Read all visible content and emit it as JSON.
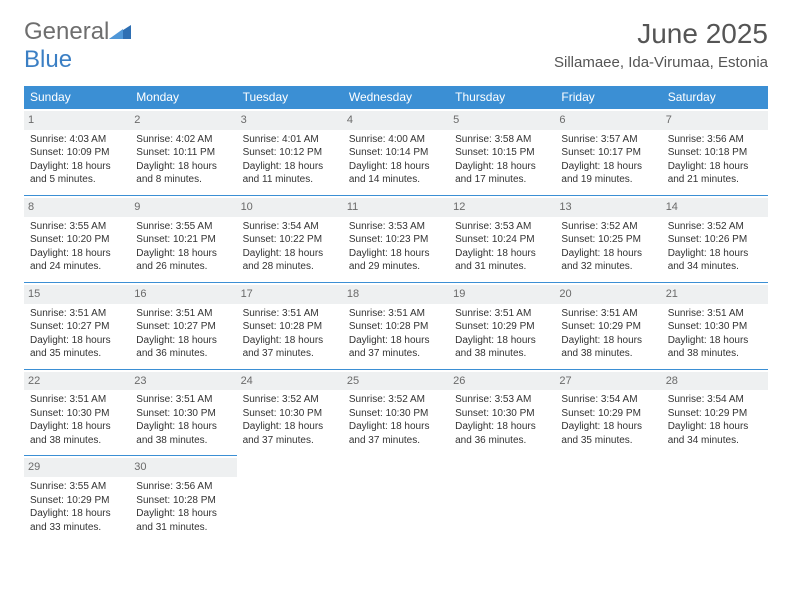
{
  "brand": {
    "word1": "General",
    "word2": "Blue"
  },
  "header": {
    "month_title": "June 2025",
    "location": "Sillamaee, Ida-Virumaa, Estonia"
  },
  "colors": {
    "header_bg": "#3b8fd4",
    "header_text": "#ffffff",
    "daynum_bg": "#eef0f1",
    "daynum_text": "#6a6a6a",
    "rule": "#3b8fd4",
    "body_text": "#333333",
    "logo_gray": "#6e6e6e",
    "logo_blue": "#3b7fc4"
  },
  "typography": {
    "title_fontsize": 28,
    "location_fontsize": 15,
    "header_cell_fontsize": 12,
    "daynum_fontsize": 11,
    "cell_fontsize": 10
  },
  "weekdays": [
    "Sunday",
    "Monday",
    "Tuesday",
    "Wednesday",
    "Thursday",
    "Friday",
    "Saturday"
  ],
  "days": [
    {
      "n": 1,
      "sunrise": "4:03 AM",
      "sunset": "10:09 PM",
      "daylight": "18 hours and 5 minutes."
    },
    {
      "n": 2,
      "sunrise": "4:02 AM",
      "sunset": "10:11 PM",
      "daylight": "18 hours and 8 minutes."
    },
    {
      "n": 3,
      "sunrise": "4:01 AM",
      "sunset": "10:12 PM",
      "daylight": "18 hours and 11 minutes."
    },
    {
      "n": 4,
      "sunrise": "4:00 AM",
      "sunset": "10:14 PM",
      "daylight": "18 hours and 14 minutes."
    },
    {
      "n": 5,
      "sunrise": "3:58 AM",
      "sunset": "10:15 PM",
      "daylight": "18 hours and 17 minutes."
    },
    {
      "n": 6,
      "sunrise": "3:57 AM",
      "sunset": "10:17 PM",
      "daylight": "18 hours and 19 minutes."
    },
    {
      "n": 7,
      "sunrise": "3:56 AM",
      "sunset": "10:18 PM",
      "daylight": "18 hours and 21 minutes."
    },
    {
      "n": 8,
      "sunrise": "3:55 AM",
      "sunset": "10:20 PM",
      "daylight": "18 hours and 24 minutes."
    },
    {
      "n": 9,
      "sunrise": "3:55 AM",
      "sunset": "10:21 PM",
      "daylight": "18 hours and 26 minutes."
    },
    {
      "n": 10,
      "sunrise": "3:54 AM",
      "sunset": "10:22 PM",
      "daylight": "18 hours and 28 minutes."
    },
    {
      "n": 11,
      "sunrise": "3:53 AM",
      "sunset": "10:23 PM",
      "daylight": "18 hours and 29 minutes."
    },
    {
      "n": 12,
      "sunrise": "3:53 AM",
      "sunset": "10:24 PM",
      "daylight": "18 hours and 31 minutes."
    },
    {
      "n": 13,
      "sunrise": "3:52 AM",
      "sunset": "10:25 PM",
      "daylight": "18 hours and 32 minutes."
    },
    {
      "n": 14,
      "sunrise": "3:52 AM",
      "sunset": "10:26 PM",
      "daylight": "18 hours and 34 minutes."
    },
    {
      "n": 15,
      "sunrise": "3:51 AM",
      "sunset": "10:27 PM",
      "daylight": "18 hours and 35 minutes."
    },
    {
      "n": 16,
      "sunrise": "3:51 AM",
      "sunset": "10:27 PM",
      "daylight": "18 hours and 36 minutes."
    },
    {
      "n": 17,
      "sunrise": "3:51 AM",
      "sunset": "10:28 PM",
      "daylight": "18 hours and 37 minutes."
    },
    {
      "n": 18,
      "sunrise": "3:51 AM",
      "sunset": "10:28 PM",
      "daylight": "18 hours and 37 minutes."
    },
    {
      "n": 19,
      "sunrise": "3:51 AM",
      "sunset": "10:29 PM",
      "daylight": "18 hours and 38 minutes."
    },
    {
      "n": 20,
      "sunrise": "3:51 AM",
      "sunset": "10:29 PM",
      "daylight": "18 hours and 38 minutes."
    },
    {
      "n": 21,
      "sunrise": "3:51 AM",
      "sunset": "10:30 PM",
      "daylight": "18 hours and 38 minutes."
    },
    {
      "n": 22,
      "sunrise": "3:51 AM",
      "sunset": "10:30 PM",
      "daylight": "18 hours and 38 minutes."
    },
    {
      "n": 23,
      "sunrise": "3:51 AM",
      "sunset": "10:30 PM",
      "daylight": "18 hours and 38 minutes."
    },
    {
      "n": 24,
      "sunrise": "3:52 AM",
      "sunset": "10:30 PM",
      "daylight": "18 hours and 37 minutes."
    },
    {
      "n": 25,
      "sunrise": "3:52 AM",
      "sunset": "10:30 PM",
      "daylight": "18 hours and 37 minutes."
    },
    {
      "n": 26,
      "sunrise": "3:53 AM",
      "sunset": "10:30 PM",
      "daylight": "18 hours and 36 minutes."
    },
    {
      "n": 27,
      "sunrise": "3:54 AM",
      "sunset": "10:29 PM",
      "daylight": "18 hours and 35 minutes."
    },
    {
      "n": 28,
      "sunrise": "3:54 AM",
      "sunset": "10:29 PM",
      "daylight": "18 hours and 34 minutes."
    },
    {
      "n": 29,
      "sunrise": "3:55 AM",
      "sunset": "10:29 PM",
      "daylight": "18 hours and 33 minutes."
    },
    {
      "n": 30,
      "sunrise": "3:56 AM",
      "sunset": "10:28 PM",
      "daylight": "18 hours and 31 minutes."
    }
  ],
  "labels": {
    "sunrise": "Sunrise:",
    "sunset": "Sunset:",
    "daylight": "Daylight:"
  }
}
